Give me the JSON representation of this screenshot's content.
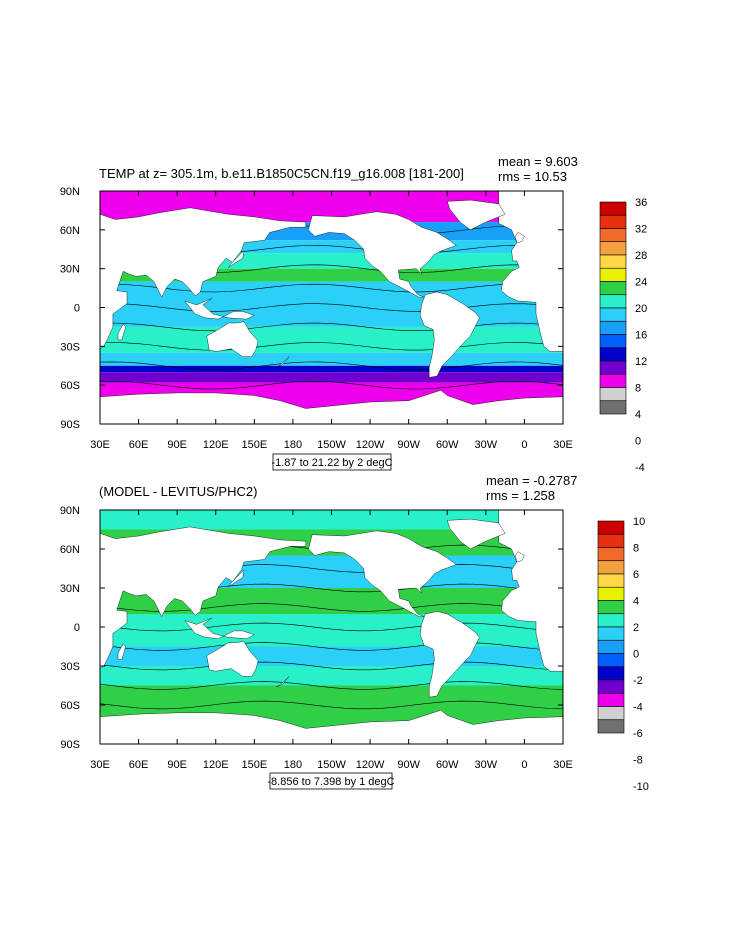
{
  "panels": [
    {
      "title": "TEMP at z= 305.1m, b.e11.B1850C5CN.f19_g16.008 [181-200]",
      "mean": "mean = 9.603",
      "rms": "rms = 10.53",
      "contour_info": "-1.87 to 21.22 by 2 degC",
      "colorbar": {
        "labels": [
          "36",
          "32",
          "28",
          "24",
          "20",
          "16",
          "12",
          "8",
          "4",
          "0",
          "-4"
        ],
        "colors": [
          "#cc0000",
          "#e83010",
          "#f06a2a",
          "#f5a040",
          "#ffd84a",
          "#e8f200",
          "#2fd048",
          "#28f0c8",
          "#2ad0f8",
          "#18a0f8",
          "#0060ff",
          "#0000cc",
          "#7000d0",
          "#ee00ee",
          "#d0d0d0",
          "#707070"
        ]
      },
      "field": "temperature"
    },
    {
      "title": "(MODEL - LEVITUS/PHC2)",
      "mean": "mean = -0.2787",
      "rms": "rms = 1.258",
      "contour_info": "-8.856 to 7.398 by 1 degC",
      "colorbar": {
        "labels": [
          "10",
          "8",
          "6",
          "4",
          "2",
          "0",
          "-2",
          "-4",
          "-6",
          "-8",
          "-10"
        ],
        "colors": [
          "#cc0000",
          "#e83010",
          "#f06a2a",
          "#f5a040",
          "#ffd84a",
          "#e8f200",
          "#2fd048",
          "#28f0c8",
          "#2ad0f8",
          "#18a0f8",
          "#0060ff",
          "#0000cc",
          "#7000d0",
          "#ee00ee",
          "#d0d0d0",
          "#707070"
        ]
      },
      "field": "difference"
    }
  ],
  "axes": {
    "x_ticks": [
      "30E",
      "60E",
      "90E",
      "120E",
      "150E",
      "180",
      "150W",
      "120W",
      "90W",
      "60W",
      "30W",
      "0",
      "30E"
    ],
    "y_ticks": [
      "90N",
      "60N",
      "30N",
      "0",
      "30S",
      "60S",
      "90S"
    ]
  },
  "colors": {
    "land": "#ffffff",
    "frame": "#000000"
  }
}
